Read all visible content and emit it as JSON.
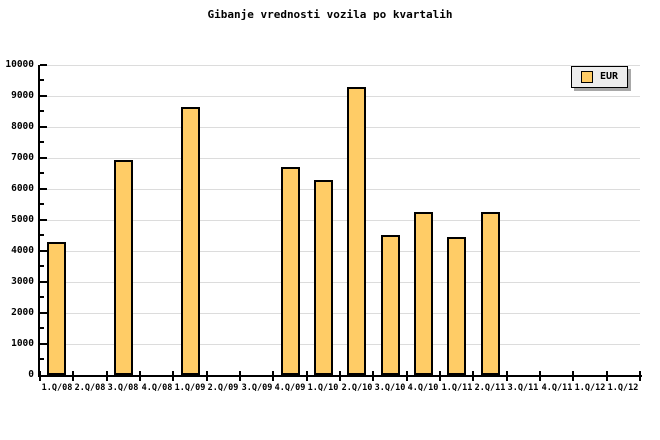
{
  "title": "Gibanje vrednosti vozila po kvartalih",
  "legend": {
    "label": "EUR"
  },
  "colors": {
    "bar_fill": "#ffcc66",
    "bar_border": "#000000",
    "grid": "#dcdcdc",
    "axis": "#000000",
    "background": "#ffffff",
    "legend_bg": "#ededed",
    "legend_shadow": "#a8a8a8"
  },
  "chart_data": {
    "type": "bar",
    "title": "Gibanje vrednosti vozila po kvartalih",
    "categories": [
      "1.Q/08",
      "2.Q/08",
      "3.Q/08",
      "4.Q/08",
      "1.Q/09",
      "2.Q/09",
      "3.Q/09",
      "4.Q/09",
      "1.Q/10",
      "2.Q/10",
      "3.Q/10",
      "4.Q/10",
      "1.Q/11",
      "2.Q/11",
      "3.Q/11",
      "4.Q/11",
      "1.Q/12",
      "1.Q/12"
    ],
    "series": [
      {
        "name": "EUR",
        "values": [
          4300,
          null,
          6950,
          null,
          8650,
          null,
          null,
          6700,
          6300,
          9300,
          4500,
          5250,
          4450,
          5250,
          null,
          null,
          null,
          null
        ]
      }
    ],
    "ylim": [
      0,
      10000
    ],
    "ytick_step": 1000,
    "ytick_minor_step": 500,
    "ytick_labels": [
      "0",
      "1000",
      "2000",
      "3000",
      "4000",
      "5000",
      "6000",
      "7000",
      "8000",
      "9000",
      "10000"
    ],
    "xlabel": "",
    "ylabel": "",
    "grid": "horizontal-major",
    "legend_position": "top-right"
  }
}
